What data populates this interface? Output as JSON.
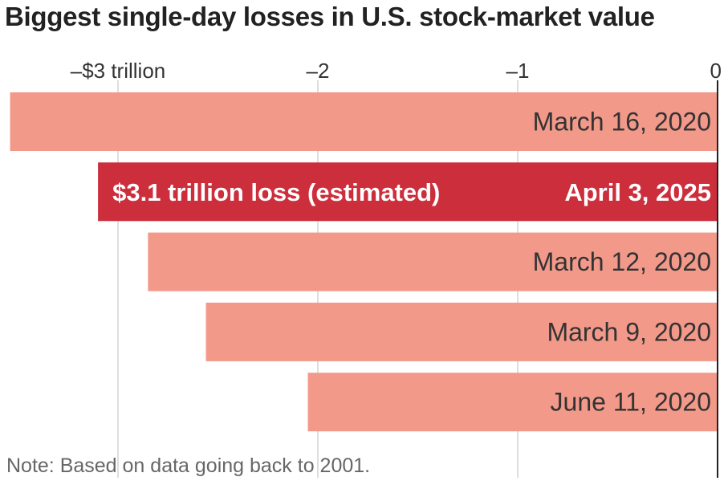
{
  "title": "Biggest single-day losses in U.S. stock-market value",
  "note": "Note: Based on data going back to 2001.",
  "colors": {
    "bar": "#f3998a",
    "highlight": "#cc2e3c",
    "grid": "#d4d4d4",
    "text": "#333333",
    "highlight_text": "#ffffff"
  },
  "chart_data": {
    "type": "bar",
    "orientation": "horizontal",
    "title": "Biggest single-day losses in U.S. stock-market value",
    "xlim": [
      -3.55,
      0
    ],
    "grid": true,
    "ticks": [
      {
        "value": -3,
        "label": "–$3 trillion"
      },
      {
        "value": -2,
        "label": "–2"
      },
      {
        "value": -1,
        "label": "–1"
      },
      {
        "value": 0,
        "label": "0"
      }
    ],
    "categories": [
      "March 16, 2020",
      "April 3, 2025",
      "March 12, 2020",
      "March 9, 2020",
      "June 11, 2020"
    ],
    "values": [
      -3.54,
      -3.1,
      -2.85,
      -2.56,
      -2.05
    ],
    "highlight_index": 1,
    "annotations": [
      {
        "category": "April 3, 2025",
        "text": "$3.1 trillion loss (estimated)"
      }
    ]
  }
}
